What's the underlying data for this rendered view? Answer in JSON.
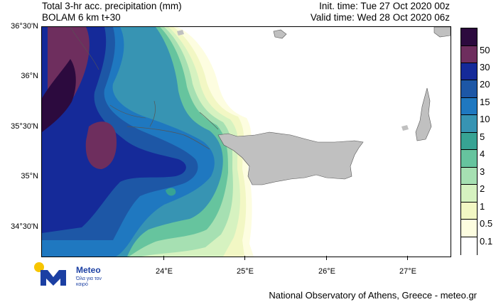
{
  "header": {
    "title_line1": "Total 3-hr acc. precipitation (mm)",
    "title_line2": "BOLAM 6 km t+30",
    "init_time": "Init. time: Tue 27 Oct 2020 00z",
    "valid_time": "Valid time: Wed 28 Oct 2020 06z"
  },
  "map": {
    "lat_labels": [
      "36°30'N",
      "36°N",
      "35°30'N",
      "35°N",
      "34°30'N"
    ],
    "lon_labels": [
      "24°E",
      "25°E",
      "26°E",
      "27°E"
    ],
    "land_color": "#c0c0c0",
    "region": "Crete and surrounding Aegean / Libyan Sea"
  },
  "legend": {
    "labels": [
      "50",
      "30",
      "20",
      "15",
      "10",
      "5",
      "4",
      "3",
      "2",
      "1",
      "0.5",
      "0.1"
    ],
    "colors": [
      "#2c0a3e",
      "#6e2e5e",
      "#152a99",
      "#1d57a6",
      "#1f78c0",
      "#3794b3",
      "#37a394",
      "#66c49e",
      "#a6e0b2",
      "#d6f2c0",
      "#f2f7c4",
      "#fdfde0",
      "#ffffff"
    ]
  },
  "logo": {
    "name": "Meteo",
    "tagline": "Όλα για τον καιρό"
  },
  "footer": {
    "credit": "National Observatory of Athens, Greece - meteo.gr"
  }
}
